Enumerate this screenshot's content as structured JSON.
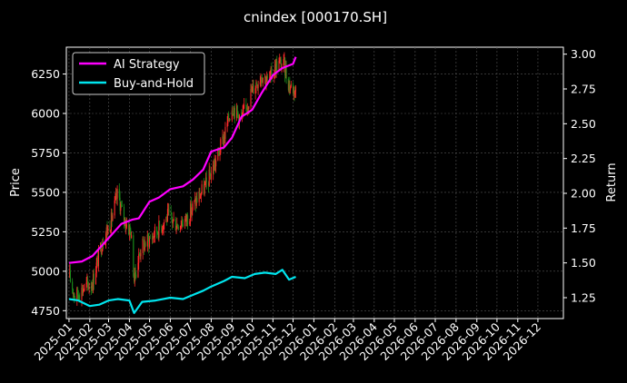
{
  "chart_data": {
    "type": "candlestick-with-lines",
    "title": "cnindex [000170.SH]",
    "xlabel": "",
    "ylabel": "Price",
    "y2label": "Return",
    "x_ticks": [
      "2025-01",
      "2025-02",
      "2025-03",
      "2025-04",
      "2025-05",
      "2025-06",
      "2025-07",
      "2025-08",
      "2025-09",
      "2025-10",
      "2025-11",
      "2025-12",
      "2026-01",
      "2026-02",
      "2026-03",
      "2026-04",
      "2026-05",
      "2026-06",
      "2026-07",
      "2026-08",
      "2026-09",
      "2026-10",
      "2026-11",
      "2026-12"
    ],
    "x_range": [
      "2024-12-28",
      "2027-01-08"
    ],
    "ylim": [
      4700,
      6420
    ],
    "y_ticks": [
      4750,
      5000,
      5250,
      5500,
      5750,
      6000,
      6250
    ],
    "y2lim": [
      1.1,
      3.05
    ],
    "y2_ticks": [
      "1.25",
      "1.50",
      "1.75",
      "2.00",
      "2.25",
      "2.50",
      "2.75",
      "3.00"
    ],
    "grid": true,
    "legend_position": "top-left",
    "legend": [
      {
        "label": "AI Strategy",
        "color": "#ff00ff"
      },
      {
        "label": "Buy-and-Hold",
        "color": "#00e5ee"
      }
    ],
    "candle_up_color": "#ff2a2a",
    "candle_down_color": "#1a8c1a",
    "price_path": [
      [
        "2025-01-02",
        4960
      ],
      [
        "2025-01-10",
        4840
      ],
      [
        "2025-01-22",
        4890
      ],
      [
        "2025-02-05",
        4930
      ],
      [
        "2025-02-20",
        5200
      ],
      [
        "2025-03-05",
        5320
      ],
      [
        "2025-03-15",
        5500
      ],
      [
        "2025-03-22",
        5350
      ],
      [
        "2025-04-03",
        5250
      ],
      [
        "2025-04-08",
        4950
      ],
      [
        "2025-04-18",
        5150
      ],
      [
        "2025-05-05",
        5220
      ],
      [
        "2025-05-20",
        5300
      ],
      [
        "2025-05-28",
        5350
      ],
      [
        "2025-06-10",
        5300
      ],
      [
        "2025-06-25",
        5330
      ],
      [
        "2025-07-10",
        5450
      ],
      [
        "2025-07-25",
        5550
      ],
      [
        "2025-08-08",
        5700
      ],
      [
        "2025-08-20",
        5850
      ],
      [
        "2025-09-01",
        6050
      ],
      [
        "2025-09-15",
        5960
      ],
      [
        "2025-10-01",
        6150
      ],
      [
        "2025-10-15",
        6250
      ],
      [
        "2025-10-25",
        6200
      ],
      [
        "2025-11-08",
        6320
      ],
      [
        "2025-11-18",
        6300
      ],
      [
        "2025-11-25",
        6180
      ],
      [
        "2025-12-05",
        6150
      ]
    ],
    "ai_strategy_return": [
      [
        "2025-01-01",
        1.5
      ],
      [
        "2025-01-20",
        1.51
      ],
      [
        "2025-02-05",
        1.55
      ],
      [
        "2025-02-20",
        1.63
      ],
      [
        "2025-03-05",
        1.7
      ],
      [
        "2025-03-20",
        1.78
      ],
      [
        "2025-04-05",
        1.81
      ],
      [
        "2025-04-15",
        1.82
      ],
      [
        "2025-05-01",
        1.94
      ],
      [
        "2025-05-15",
        1.97
      ],
      [
        "2025-06-01",
        2.03
      ],
      [
        "2025-06-20",
        2.05
      ],
      [
        "2025-07-05",
        2.1
      ],
      [
        "2025-07-20",
        2.17
      ],
      [
        "2025-08-01",
        2.3
      ],
      [
        "2025-08-20",
        2.33
      ],
      [
        "2025-09-01",
        2.4
      ],
      [
        "2025-09-15",
        2.55
      ],
      [
        "2025-10-01",
        2.6
      ],
      [
        "2025-10-15",
        2.72
      ],
      [
        "2025-11-01",
        2.85
      ],
      [
        "2025-11-15",
        2.9
      ],
      [
        "2025-12-01",
        2.93
      ],
      [
        "2025-12-05",
        2.98
      ]
    ],
    "buy_and_hold_return": [
      [
        "2025-01-01",
        1.24
      ],
      [
        "2025-01-15",
        1.23
      ],
      [
        "2025-02-01",
        1.19
      ],
      [
        "2025-02-15",
        1.2
      ],
      [
        "2025-03-01",
        1.23
      ],
      [
        "2025-03-15",
        1.24
      ],
      [
        "2025-04-01",
        1.23
      ],
      [
        "2025-04-08",
        1.14
      ],
      [
        "2025-04-20",
        1.22
      ],
      [
        "2025-05-10",
        1.23
      ],
      [
        "2025-06-01",
        1.25
      ],
      [
        "2025-06-20",
        1.24
      ],
      [
        "2025-07-05",
        1.27
      ],
      [
        "2025-07-20",
        1.3
      ],
      [
        "2025-08-01",
        1.33
      ],
      [
        "2025-08-20",
        1.37
      ],
      [
        "2025-09-01",
        1.4
      ],
      [
        "2025-09-20",
        1.39
      ],
      [
        "2025-10-05",
        1.42
      ],
      [
        "2025-10-20",
        1.43
      ],
      [
        "2025-11-05",
        1.42
      ],
      [
        "2025-11-15",
        1.45
      ],
      [
        "2025-11-25",
        1.38
      ],
      [
        "2025-12-05",
        1.4
      ]
    ]
  }
}
